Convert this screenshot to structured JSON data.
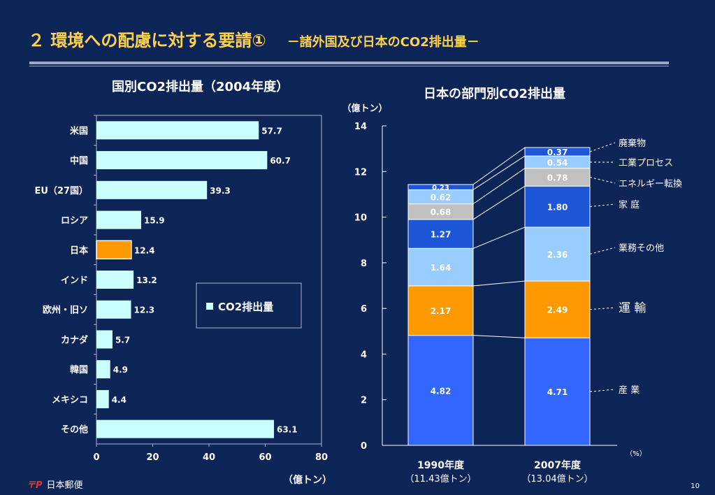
{
  "header": {
    "title": "２ 環境への配慮に対する要請①",
    "subtitle": "－諸外国及び日本のCO2排出量－"
  },
  "left_chart_title": "国別CO2排出量（2004年度）",
  "right_chart_title": "日本の部門別CO2排出量",
  "footer": {
    "logo_text": "日本郵便",
    "page_number": "10"
  },
  "chart_data": [
    {
      "type": "bar",
      "orientation": "horizontal",
      "title": "国別CO2排出量（2004年度）",
      "categories": [
        "米国",
        "中国",
        "EU（27国）",
        "ロシア",
        "日本",
        "インド",
        "欧州・旧ソ",
        "カナダ",
        "韓国",
        "メキシコ",
        "その他"
      ],
      "values": [
        57.7,
        60.7,
        39.3,
        15.9,
        12.4,
        13.2,
        12.3,
        5.7,
        4.9,
        4.4,
        63.1
      ],
      "value_labels": [
        "57.7",
        "60.7",
        "39.3",
        "15.9",
        "12.4",
        "13.2",
        "12.3",
        "5.7",
        "4.9",
        "4.4",
        "63.1"
      ],
      "highlight_category": "日本",
      "colors": {
        "bar": "#ccffff",
        "highlight": "#ff9900"
      },
      "xlim": [
        0,
        80
      ],
      "xticks": [
        "0",
        "20",
        "40",
        "60",
        "80"
      ],
      "xlabel": "（億トン）",
      "legend": {
        "label": "CO2排出量",
        "placement": "center-right"
      }
    },
    {
      "type": "bar",
      "stacked": true,
      "title": "日本の部門別CO2排出量",
      "categories": [
        "1990年度",
        "2007年度"
      ],
      "category_sublabels": [
        "（11.43億トン）",
        "（13.04億トン）"
      ],
      "ylabel": "（億トン）",
      "ylim": [
        0,
        14
      ],
      "yticks": [
        "0",
        "2",
        "4",
        "6",
        "8",
        "10",
        "12",
        "14"
      ],
      "unit_note": "（%）",
      "series": [
        {
          "name": "産 業",
          "values": [
            4.82,
            4.71
          ],
          "labels": [
            "4.82",
            "4.71"
          ],
          "color": "#3366ff",
          "label_color": "#ffffff"
        },
        {
          "name": "運 輸",
          "values": [
            2.17,
            2.49
          ],
          "labels": [
            "2.17",
            "2.49"
          ],
          "color": "#ff9900",
          "label_color": "#ffffff"
        },
        {
          "name": "業務その他",
          "values": [
            1.64,
            2.36
          ],
          "labels": [
            "1.64",
            "2.36"
          ],
          "color": "#99ccff",
          "label_color": "#ffffff"
        },
        {
          "name": "家 庭",
          "values": [
            1.27,
            1.8
          ],
          "labels": [
            "1.27",
            "1.80"
          ],
          "color": "#1e56d8",
          "label_color": "#ffffff"
        },
        {
          "name": "エネルギー転換",
          "values": [
            0.68,
            0.78
          ],
          "labels": [
            "0.68",
            "0.78"
          ],
          "color": "#c0c0c0",
          "label_color": "#ffffff"
        },
        {
          "name": "工業プロセス",
          "values": [
            0.62,
            0.54
          ],
          "labels": [
            "0.62",
            "0.54"
          ],
          "color": "#99ccff",
          "label_color": "#ffffff"
        },
        {
          "name": "廃棄物",
          "values": [
            0.23,
            0.37
          ],
          "labels": [
            "0.23",
            "0.37"
          ],
          "color": "#1e56d8",
          "label_color": "#ffffff"
        }
      ]
    }
  ]
}
